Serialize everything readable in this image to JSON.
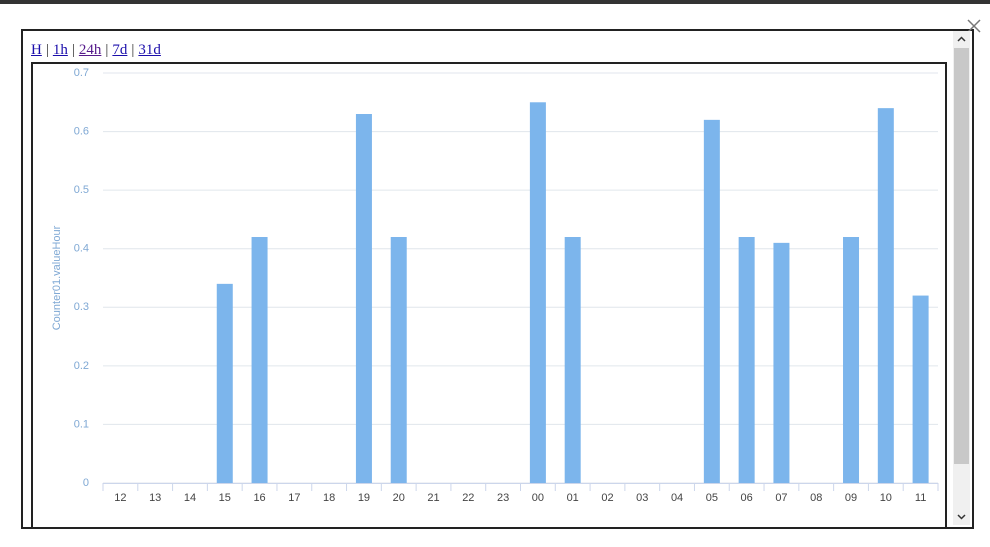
{
  "nav": {
    "links": [
      "H",
      "1h",
      "24h",
      "7d",
      "31d"
    ],
    "separator": "|"
  },
  "chart_data": {
    "type": "bar",
    "y_label": "Counter01.valueHour",
    "categories": [
      "12",
      "13",
      "14",
      "15",
      "16",
      "17",
      "18",
      "19",
      "20",
      "21",
      "22",
      "23",
      "00",
      "01",
      "02",
      "03",
      "04",
      "05",
      "06",
      "07",
      "08",
      "09",
      "10",
      "11"
    ],
    "values": [
      0,
      0,
      0,
      0.34,
      0.42,
      0,
      0,
      0.63,
      0.42,
      0,
      0,
      0,
      0.65,
      0.42,
      0,
      0,
      0,
      0.62,
      0.42,
      0.41,
      0,
      0.42,
      0.64,
      0.32
    ],
    "color": "#7cb5ec",
    "ylim": [
      0,
      0.7
    ],
    "yticks": [
      0,
      0.1,
      0.2,
      0.3,
      0.4,
      0.5,
      0.6,
      0.7
    ],
    "grid": true
  }
}
